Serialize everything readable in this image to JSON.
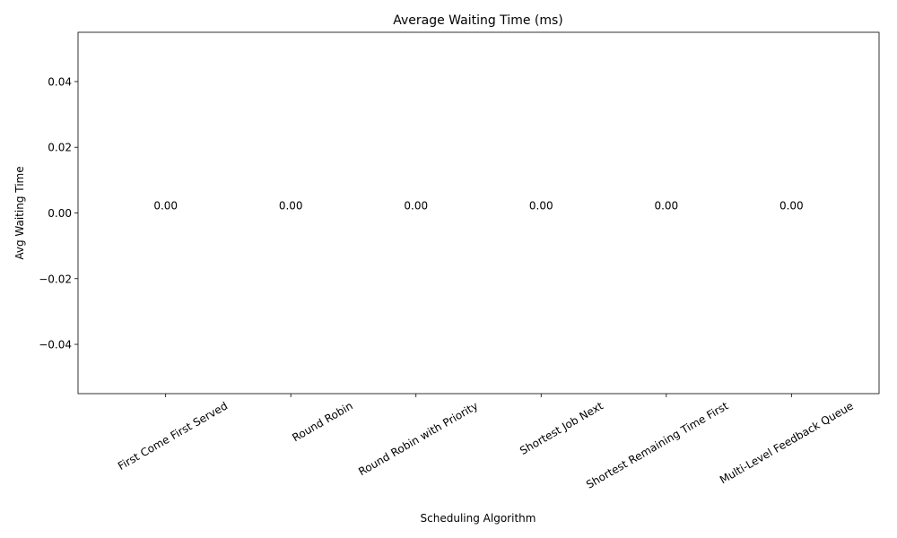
{
  "chart_data": {
    "type": "bar",
    "title": "Average Waiting Time (ms)",
    "xlabel": "Scheduling Algorithm",
    "ylabel": "Avg Waiting Time",
    "categories": [
      "First Come First Served",
      "Round Robin",
      "Round Robin with Priority",
      "Shortest Job Next",
      "Shortest Remaining Time First",
      "Multi-Level Feedback Queue"
    ],
    "values": [
      0,
      0,
      0,
      0,
      0,
      0
    ],
    "data_labels": [
      "0.00",
      "0.00",
      "0.00",
      "0.00",
      "0.00",
      "0.00"
    ],
    "ylim": [
      -0.055,
      0.055
    ],
    "yticks": [
      -0.04,
      -0.02,
      0.0,
      0.02,
      0.04
    ],
    "ytick_labels": [
      "−0.04",
      "−0.02",
      "0.00",
      "0.02",
      "0.04"
    ],
    "xlim": [
      -0.7,
      5.7
    ],
    "grid": false,
    "legend": "none",
    "bar_color": "#1f77b4"
  }
}
